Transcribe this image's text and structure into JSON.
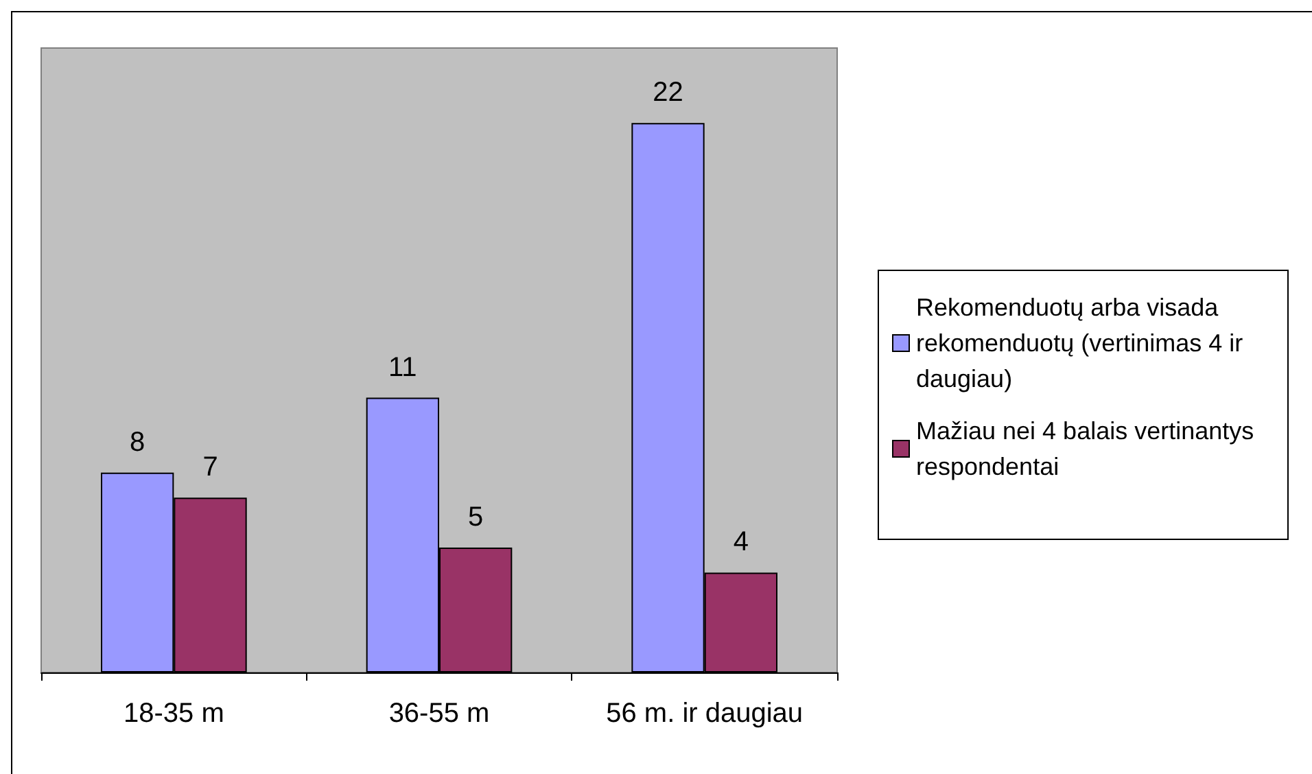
{
  "chart_data": {
    "type": "bar",
    "categories": [
      "18-35 m",
      "36-55 m",
      "56 m. ir daugiau"
    ],
    "series": [
      {
        "name": "Rekomenduotų arba visada rekomenduotų (vertinimas 4 ir daugiau)",
        "color": "#9999ff",
        "values": [
          8,
          11,
          22
        ]
      },
      {
        "name": "Mažiau nei 4 balais vertinantys respondentai",
        "color": "#993366",
        "values": [
          7,
          5,
          4
        ]
      }
    ],
    "data_labels": true,
    "legend": "right",
    "grid": false
  }
}
